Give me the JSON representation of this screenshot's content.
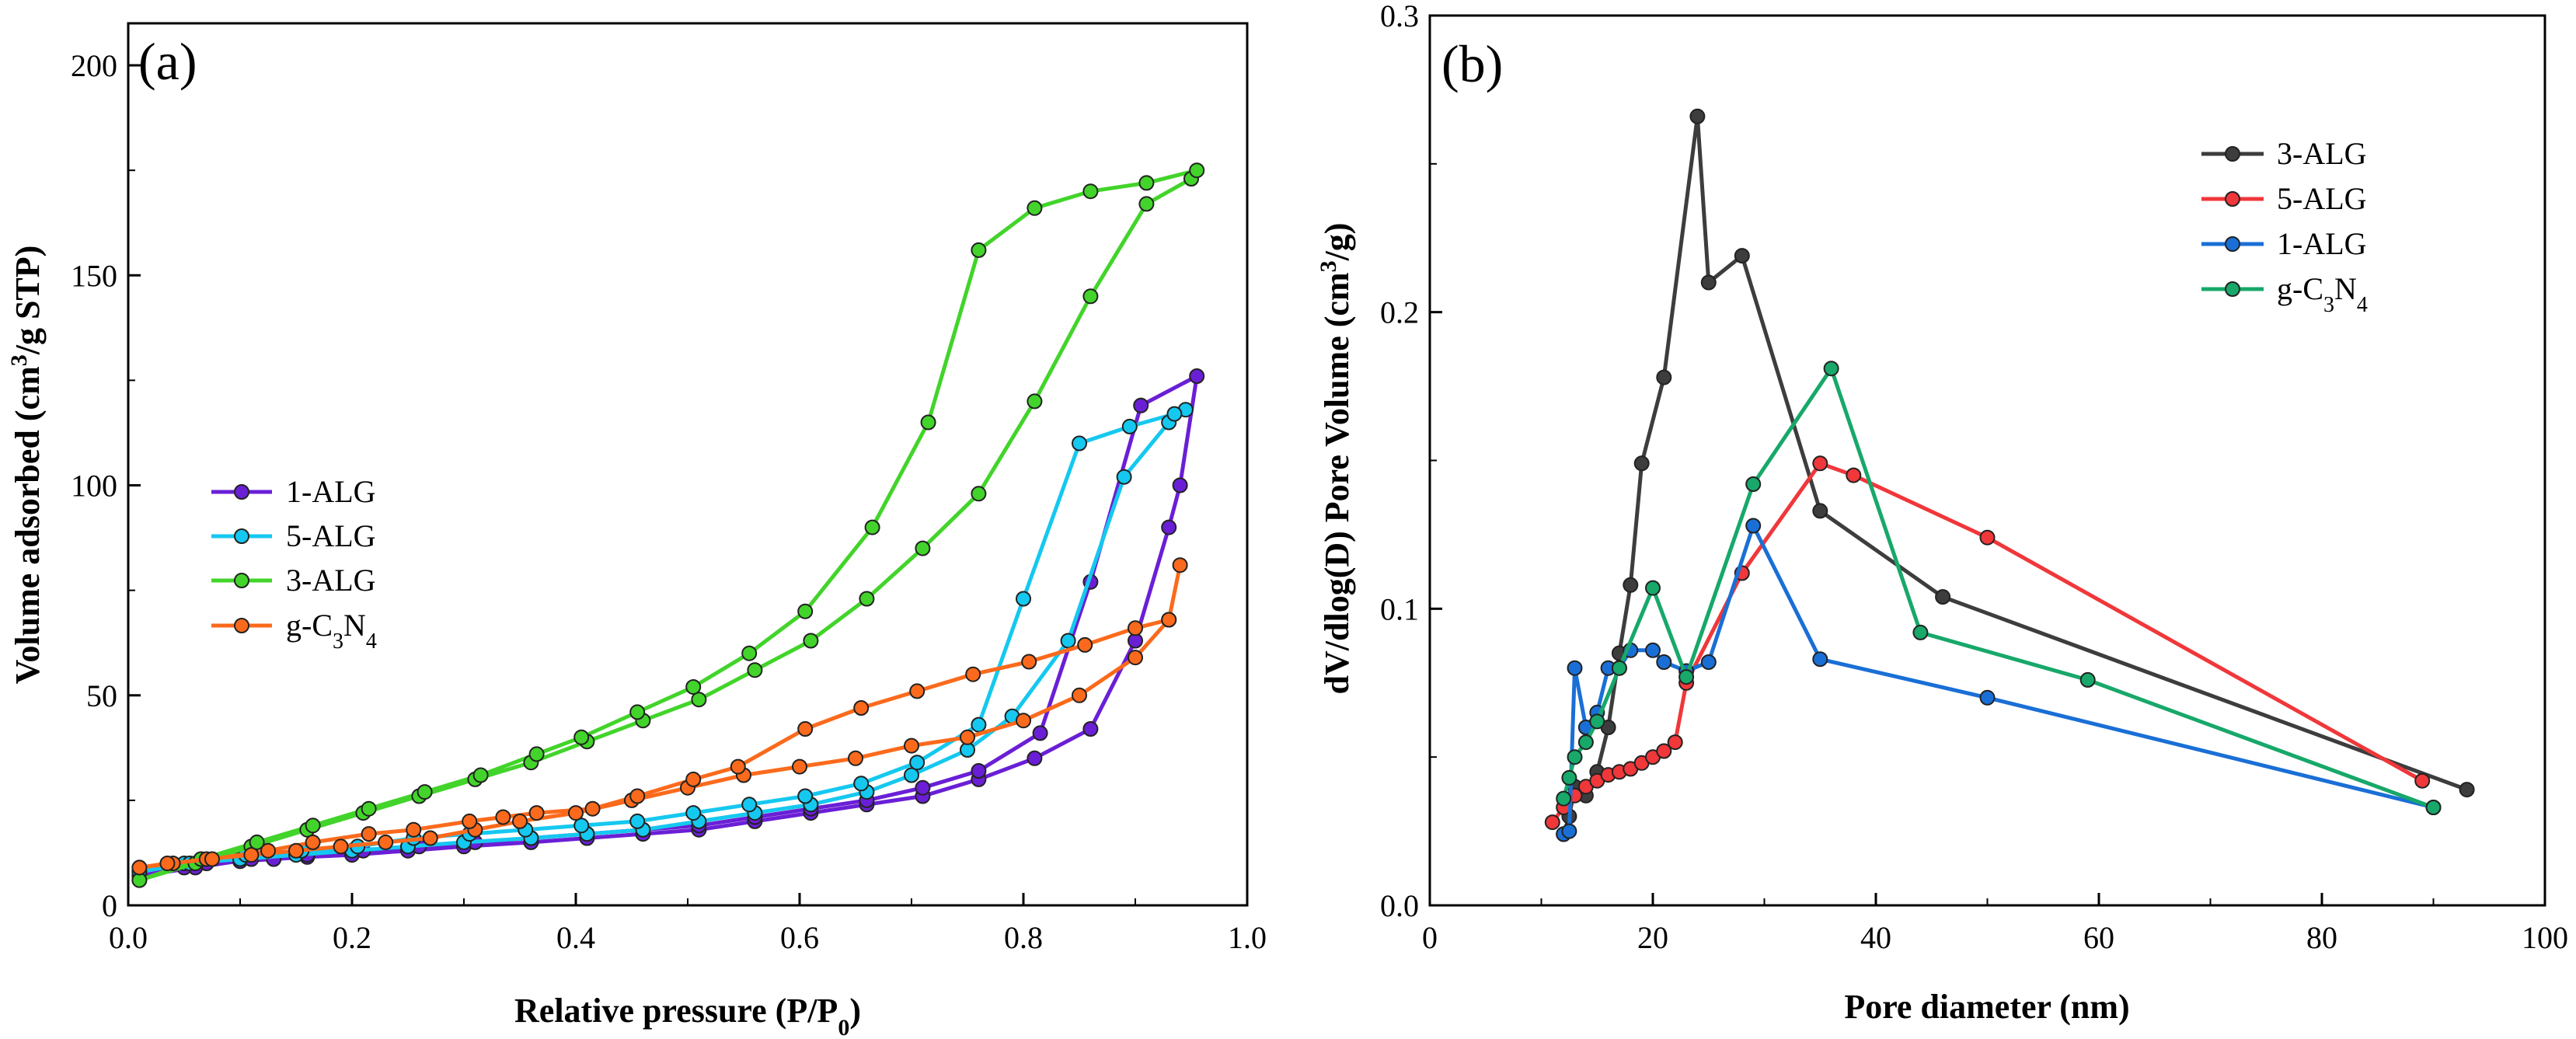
{
  "chart_data": [
    {
      "type": "line",
      "panel_label": "(a)",
      "title": "",
      "xlabel": "Relative pressure (P/P",
      "xlabel_sub": "0",
      "xlabel_end": ")",
      "ylabel": "Volume adsorbed (cm",
      "ylabel_sup": "3",
      "ylabel_end": "/g STP)",
      "xlim": [
        0,
        1.0
      ],
      "ylim": [
        0,
        210
      ],
      "xticks": [
        0.0,
        0.2,
        0.4,
        0.6,
        0.8,
        1.0
      ],
      "xtick_labels": [
        "0.0",
        "0.2",
        "0.4",
        "0.6",
        "0.8",
        "1.0"
      ],
      "yticks": [
        0,
        50,
        100,
        150,
        200
      ],
      "ytick_labels": [
        "0",
        "50",
        "100",
        "150",
        "200"
      ],
      "grid": false,
      "legend_placement": "middle-left",
      "series": [
        {
          "name": "1-ALG",
          "color": "#6a1fd6",
          "x": [
            0.01,
            0.05,
            0.07,
            0.1,
            0.13,
            0.16,
            0.2,
            0.25,
            0.3,
            0.36,
            0.41,
            0.46,
            0.51,
            0.56,
            0.61,
            0.66,
            0.71,
            0.76,
            0.81,
            0.86,
            0.9,
            0.93,
            0.94,
            0.955,
            0.905,
            0.86,
            0.815,
            0.76,
            0.71,
            0.66,
            0.61,
            0.56,
            0.51,
            0.46,
            0.41,
            0.36,
            0.31,
            0.26,
            0.21,
            0.16,
            0.11,
            0.06,
            0.01
          ],
          "y": [
            7,
            9,
            10,
            10.5,
            11,
            11.5,
            12,
            13,
            14,
            15,
            16,
            17,
            18,
            20,
            22,
            24,
            26,
            30,
            35,
            42,
            63,
            90,
            100,
            126,
            119,
            77,
            41,
            32,
            28,
            25,
            23,
            21,
            19,
            18,
            17,
            16,
            15,
            14,
            13,
            12,
            11,
            9,
            7
          ]
        },
        {
          "name": "5-ALG",
          "color": "#15c8f0",
          "x": [
            0.01,
            0.05,
            0.1,
            0.15,
            0.2,
            0.25,
            0.3,
            0.36,
            0.41,
            0.46,
            0.51,
            0.56,
            0.61,
            0.66,
            0.7,
            0.75,
            0.79,
            0.84,
            0.89,
            0.93,
            0.945,
            0.935,
            0.895,
            0.85,
            0.8,
            0.76,
            0.705,
            0.655,
            0.605,
            0.555,
            0.505,
            0.455,
            0.405,
            0.355,
            0.305,
            0.255,
            0.205,
            0.155,
            0.105,
            0.055,
            0.01
          ],
          "y": [
            8,
            10,
            11,
            12,
            13,
            14,
            15,
            16,
            17,
            18,
            20,
            22,
            24,
            27,
            31,
            37,
            45,
            63,
            102,
            115,
            118,
            117,
            114,
            110,
            73,
            43,
            34,
            29,
            26,
            24,
            22,
            20,
            19,
            18,
            17,
            16,
            14,
            13,
            12,
            10,
            8
          ]
        },
        {
          "name": "3-ALG",
          "color": "#42d42a",
          "x": [
            0.01,
            0.06,
            0.11,
            0.16,
            0.21,
            0.26,
            0.31,
            0.36,
            0.41,
            0.46,
            0.51,
            0.56,
            0.61,
            0.66,
            0.71,
            0.76,
            0.81,
            0.86,
            0.91,
            0.95,
            0.955,
            0.91,
            0.86,
            0.81,
            0.76,
            0.715,
            0.665,
            0.605,
            0.555,
            0.505,
            0.455,
            0.405,
            0.365,
            0.315,
            0.265,
            0.215,
            0.165,
            0.115,
            0.065,
            0.01
          ],
          "y": [
            6,
            10,
            14,
            18,
            22,
            26,
            30,
            34,
            39,
            44,
            49,
            56,
            63,
            73,
            85,
            98,
            120,
            145,
            167,
            173,
            175,
            172,
            170,
            166,
            156,
            115,
            90,
            70,
            60,
            52,
            46,
            40,
            36,
            31,
            27,
            23,
            19,
            15,
            11,
            6
          ]
        },
        {
          "name": "g-C3N4",
          "color": "#fb6a1c",
          "x": [
            0.01,
            0.04,
            0.07,
            0.11,
            0.15,
            0.19,
            0.23,
            0.27,
            0.31,
            0.35,
            0.4,
            0.45,
            0.5,
            0.55,
            0.6,
            0.65,
            0.7,
            0.75,
            0.8,
            0.85,
            0.9,
            0.93,
            0.94,
            0.93,
            0.9,
            0.855,
            0.805,
            0.755,
            0.705,
            0.655,
            0.605,
            0.545,
            0.505,
            0.455,
            0.415,
            0.365,
            0.335,
            0.305,
            0.255,
            0.215,
            0.165,
            0.125,
            0.075,
            0.035,
            0.01
          ],
          "y": [
            9,
            10,
            11,
            12,
            13,
            14,
            15,
            16,
            18,
            20,
            22,
            25,
            28,
            31,
            33,
            35,
            38,
            40,
            44,
            50,
            59,
            68,
            81,
            68,
            66,
            62,
            58,
            55,
            51,
            47,
            42,
            33,
            30,
            26,
            23,
            22,
            21,
            20,
            18,
            17,
            15,
            13,
            11,
            10,
            9
          ]
        }
      ]
    },
    {
      "type": "line",
      "panel_label": "(b)",
      "title": "",
      "xlabel": "Pore diameter (nm)",
      "ylabel": "dV/dlog(D) Pore Volume (cm",
      "ylabel_sup": "3",
      "ylabel_end": "/g)",
      "xlim": [
        0,
        100
      ],
      "ylim": [
        0,
        0.3
      ],
      "xticks": [
        0,
        20,
        40,
        60,
        80,
        100
      ],
      "xtick_labels": [
        "0",
        "20",
        "40",
        "60",
        "80",
        "100"
      ],
      "yticks": [
        0,
        0.1,
        0.2,
        0.3
      ],
      "ytick_labels": [
        "0.0",
        "0.1",
        "0.2",
        "0.3"
      ],
      "grid": false,
      "legend_placement": "top-right",
      "series": [
        {
          "name": "3-ALG",
          "color": "#3d3d3d",
          "x": [
            12,
            12.5,
            13,
            14,
            15,
            16,
            17,
            18,
            19,
            21,
            24,
            25,
            28,
            35,
            46,
            93
          ],
          "y": [
            0.024,
            0.03,
            0.04,
            0.037,
            0.045,
            0.06,
            0.085,
            0.108,
            0.149,
            0.178,
            0.266,
            0.21,
            0.219,
            0.133,
            0.104,
            0.039
          ]
        },
        {
          "name": "5-ALG",
          "color": "#f0373a",
          "x": [
            11,
            12,
            13,
            14,
            15,
            16,
            17,
            18,
            19,
            20,
            21,
            22,
            23,
            28,
            35,
            38,
            50,
            89
          ],
          "y": [
            0.028,
            0.033,
            0.037,
            0.04,
            0.042,
            0.044,
            0.045,
            0.046,
            0.048,
            0.05,
            0.052,
            0.055,
            0.075,
            0.112,
            0.149,
            0.145,
            0.124,
            0.042
          ]
        },
        {
          "name": "1-ALG",
          "color": "#1a6fd6",
          "x": [
            12,
            12.5,
            13,
            14,
            15,
            16,
            17,
            18,
            20,
            21,
            23,
            25,
            29,
            35,
            50,
            90
          ],
          "y": [
            0.024,
            0.025,
            0.08,
            0.06,
            0.065,
            0.08,
            0.08,
            0.086,
            0.086,
            0.082,
            0.079,
            0.082,
            0.128,
            0.083,
            0.07,
            0.033
          ]
        },
        {
          "name": "g-C3N4",
          "color": "#17a86a",
          "x": [
            12,
            12.5,
            13,
            14,
            15,
            17,
            20,
            23,
            29,
            36,
            44,
            59,
            90
          ],
          "y": [
            0.036,
            0.043,
            0.05,
            0.055,
            0.062,
            0.08,
            0.107,
            0.077,
            0.142,
            0.181,
            0.092,
            0.076,
            0.033
          ]
        }
      ]
    }
  ]
}
